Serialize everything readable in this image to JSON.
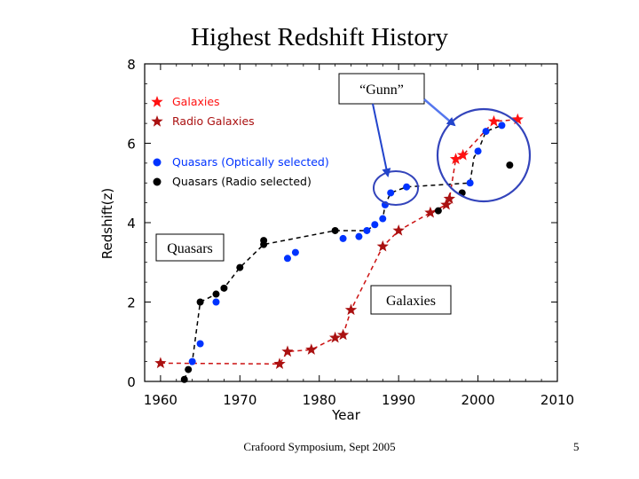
{
  "slide": {
    "title": "Highest Redshift History",
    "footer": "Crafoord Symposium, Sept 2005",
    "page_number": "5"
  },
  "annotations": {
    "gunn": "“Gunn”",
    "quasars": "Quasars",
    "galaxies": "Galaxies"
  },
  "colors": {
    "galaxies": "#cc1111",
    "radio_galaxies": "#aa1111",
    "quasars_optical": "#0033ff",
    "quasars_radio": "#000000",
    "circle": "#3344bb"
  },
  "chart_data": {
    "type": "scatter",
    "title": "Highest Redshift History",
    "xlabel": "Year",
    "ylabel": "Redshift(z)",
    "xlim": [
      1958,
      2010
    ],
    "ylim": [
      0,
      8
    ],
    "xticks": [
      1960,
      1970,
      1980,
      1990,
      2000,
      2010
    ],
    "yticks": [
      0,
      2,
      4,
      6,
      8
    ],
    "legend_position": "top-left",
    "legend": [
      {
        "label": "Galaxies",
        "marker": "star",
        "color": "#ff1111"
      },
      {
        "label": "Radio Galaxies",
        "marker": "star",
        "color": "#aa1111"
      },
      {
        "label": "Quasars (Optically selected)",
        "marker": "circle",
        "color": "#0033ff"
      },
      {
        "label": "Quasars (Radio selected)",
        "marker": "circle",
        "color": "#000000"
      }
    ],
    "series": [
      {
        "name": "Galaxies",
        "marker": "star",
        "color": "#ff1111",
        "points": [
          [
            1997.2,
            5.6
          ],
          [
            1998.1,
            5.7
          ],
          [
            2002,
            6.55
          ],
          [
            2005,
            6.6
          ]
        ]
      },
      {
        "name": "Radio Galaxies",
        "marker": "star",
        "color": "#aa1111",
        "points": [
          [
            1960,
            0.46
          ],
          [
            1975,
            0.44
          ],
          [
            1976,
            0.75
          ],
          [
            1979,
            0.8
          ],
          [
            1982,
            1.1
          ],
          [
            1983,
            1.17
          ],
          [
            1984,
            1.8
          ],
          [
            1988,
            3.4
          ],
          [
            1990,
            3.8
          ],
          [
            1994,
            4.25
          ],
          [
            1996,
            4.45
          ],
          [
            1996.4,
            4.6
          ]
        ]
      },
      {
        "name": "Quasars (Optically selected)",
        "marker": "circle",
        "color": "#0033ff",
        "points": [
          [
            1964,
            0.5
          ],
          [
            1965,
            0.95
          ],
          [
            1967,
            2.0
          ],
          [
            1976,
            3.1
          ],
          [
            1977,
            3.25
          ],
          [
            1983,
            3.6
          ],
          [
            1985,
            3.65
          ],
          [
            1986,
            3.8
          ],
          [
            1987,
            3.95
          ],
          [
            1988,
            4.1
          ],
          [
            1988.3,
            4.45
          ],
          [
            1989,
            4.75
          ],
          [
            1991,
            4.9
          ],
          [
            1999,
            5.0
          ],
          [
            2000,
            5.8
          ],
          [
            2001,
            6.3
          ],
          [
            2003,
            6.45
          ]
        ]
      },
      {
        "name": "Quasars (Radio selected)",
        "marker": "circle",
        "color": "#000000",
        "points": [
          [
            1963,
            0.05
          ],
          [
            1963.5,
            0.3
          ],
          [
            1965,
            2.0
          ],
          [
            1967,
            2.2
          ],
          [
            1968,
            2.35
          ],
          [
            1970,
            2.87
          ],
          [
            1973,
            3.45
          ],
          [
            1973,
            3.55
          ],
          [
            1982,
            3.8
          ],
          [
            1995,
            4.3
          ],
          [
            1998,
            4.75
          ],
          [
            2004,
            5.45
          ]
        ]
      }
    ],
    "trend_lines": [
      {
        "name": "quasar envelope",
        "style": "dashed",
        "color": "#000000",
        "points": [
          [
            1963,
            0.05
          ],
          [
            1963.5,
            0.3
          ],
          [
            1964,
            0.5
          ],
          [
            1965,
            2.0
          ],
          [
            1967,
            2.2
          ],
          [
            1968,
            2.35
          ],
          [
            1970,
            2.87
          ],
          [
            1973,
            3.45
          ],
          [
            1982,
            3.8
          ],
          [
            1985,
            3.8
          ],
          [
            1986,
            3.8
          ],
          [
            1987,
            3.95
          ],
          [
            1988,
            4.1
          ],
          [
            1988.3,
            4.45
          ],
          [
            1989,
            4.75
          ],
          [
            1991,
            4.9
          ],
          [
            1999,
            5.0
          ],
          [
            1999.5,
            5.65
          ],
          [
            2000,
            5.8
          ],
          [
            2001,
            6.3
          ],
          [
            2003,
            6.45
          ]
        ]
      },
      {
        "name": "galaxy envelope",
        "style": "dashed",
        "color": "#cc1111",
        "points": [
          [
            1960,
            0.46
          ],
          [
            1975,
            0.44
          ],
          [
            1976,
            0.75
          ],
          [
            1979,
            0.8
          ],
          [
            1982,
            1.1
          ],
          [
            1983,
            1.17
          ],
          [
            1984,
            1.8
          ],
          [
            1988,
            3.4
          ],
          [
            1990,
            3.8
          ],
          [
            1994,
            4.25
          ],
          [
            1996,
            4.45
          ],
          [
            1996.4,
            4.6
          ],
          [
            1997.2,
            5.6
          ],
          [
            1998.1,
            5.7
          ],
          [
            2002,
            6.55
          ],
          [
            2005,
            6.6
          ]
        ]
      }
    ]
  }
}
